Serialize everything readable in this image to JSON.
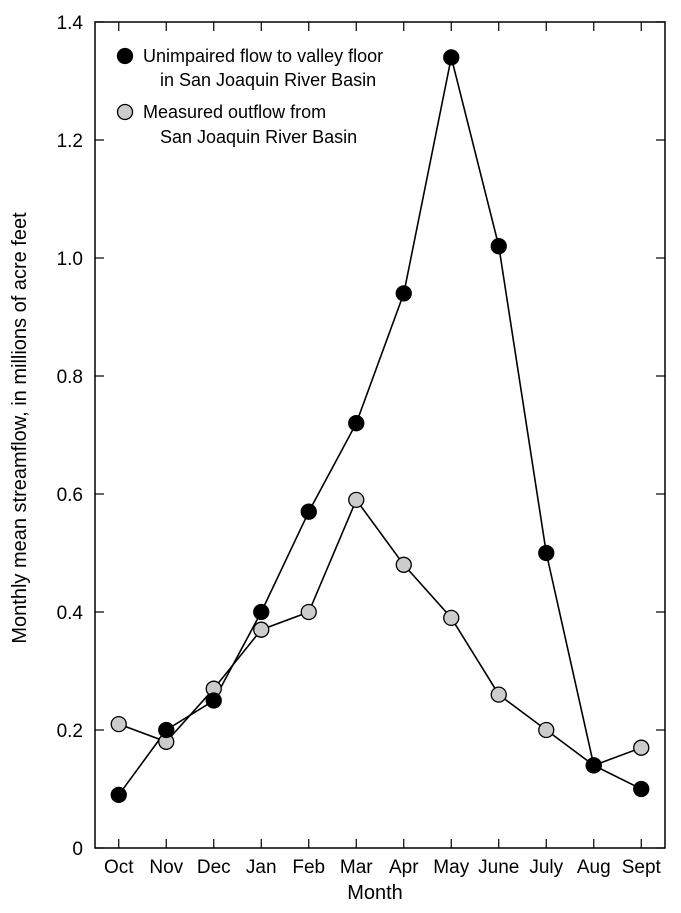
{
  "chart_data": {
    "type": "line",
    "title": "",
    "xlabel": "Month",
    "ylabel": "Monthly mean streamflow, in millions of acre feet",
    "categories": [
      "Oct",
      "Nov",
      "Dec",
      "Jan",
      "Feb",
      "Mar",
      "Apr",
      "May",
      "June",
      "July",
      "Aug",
      "Sept"
    ],
    "ylim": [
      0,
      1.4
    ],
    "yticks": [
      0,
      0.2,
      0.4,
      0.6,
      0.8,
      1.0,
      1.2,
      1.4
    ],
    "ytick_labels": [
      "0",
      "0.2",
      "0.4",
      "0.6",
      "0.8",
      "1.0",
      "1.2",
      "1.4"
    ],
    "grid": false,
    "legend_position": "top-left",
    "series": [
      {
        "name_lines": [
          "Unimpaired flow to valley floor",
          "in San Joaquin River Basin"
        ],
        "marker_color": "#000000",
        "values": [
          0.09,
          0.2,
          0.25,
          0.4,
          0.57,
          0.72,
          0.94,
          1.34,
          1.02,
          0.5,
          0.14,
          0.1
        ]
      },
      {
        "name_lines": [
          "Measured outflow from",
          "San Joaquin River Basin"
        ],
        "marker_color": "#cccccc",
        "values": [
          0.21,
          0.18,
          0.27,
          0.37,
          0.4,
          0.59,
          0.48,
          0.39,
          0.26,
          0.2,
          0.14,
          0.17
        ]
      }
    ]
  }
}
